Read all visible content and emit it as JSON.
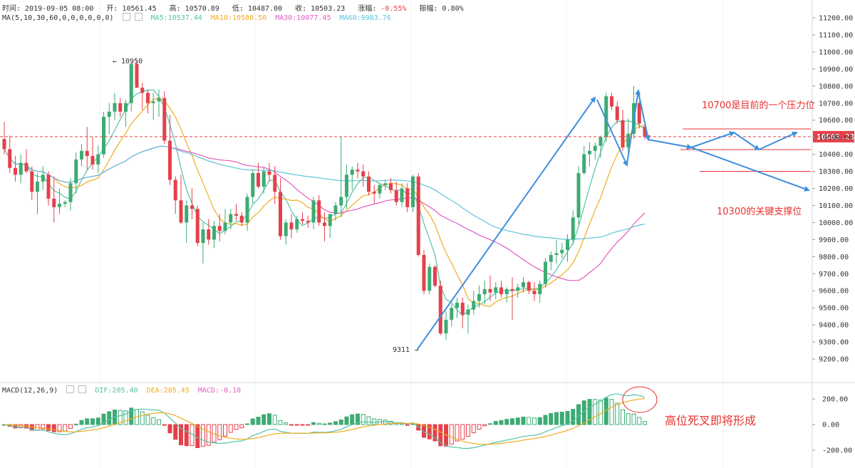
{
  "info_bar": {
    "time_label": "时间:",
    "time": "2019-09-05 08:00",
    "open_label": "开:",
    "open": "10561.45",
    "high_label": "高:",
    "high": "10570.89",
    "low_label": "低:",
    "low": "10487.00",
    "close_label": "收:",
    "close": "10503.23",
    "change_label": "涨幅:",
    "change": "-0.55%",
    "amplitude_label": "振幅:",
    "amplitude": "0.80%"
  },
  "ma_bar": {
    "label": "MA(5,10,30,60,0,0,0,0,0,0)",
    "ma5": "MA5:10537.44",
    "ma10": "MA10:10580.50",
    "ma30": "MA30:10077.45",
    "ma60": "MA60:9983.76"
  },
  "macd_bar": {
    "label": "MACD(12,26,9)",
    "dif": "DIF:205.40",
    "dea": "DEA:205.45",
    "macd": "MACD:-0.10"
  },
  "annotations": {
    "resistance": "10700是目前的一个压力位",
    "support": "10300的关键支撑位",
    "death_cross": "高位死叉即将形成",
    "high_mark": "10950",
    "low_mark": "9311"
  },
  "price_tag": "10503.23",
  "colors": {
    "up": "#3dab73",
    "down": "#e5404a",
    "ma5": "#53c2a8",
    "ma10": "#f2ac1f",
    "ma30": "#e25ac0",
    "ma60": "#5fc4d9",
    "arrow": "#3f8fdc",
    "annotation": "#e8312f",
    "price_line": "#e5404a",
    "change_neg": "#e5404a"
  },
  "chart_data": [
    {
      "type": "candlestick",
      "y_axis_ticks": [
        "11200.00",
        "11100.00",
        "11000.00",
        "10900.00",
        "10800.00",
        "10700.00",
        "10600.00",
        "10500.00",
        "10400.00",
        "10300.00",
        "10200.00",
        "10100.00",
        "10000.00",
        "9900.00",
        "9800.00",
        "9700.00",
        "9600.00",
        "9500.00",
        "9400.00",
        "9300.00",
        "9200.00"
      ],
      "ylim": [
        9150,
        11240
      ],
      "last_price": 10503.23,
      "levels": {
        "resistance": 10700,
        "support": 10300
      },
      "candles": [
        [
          10490,
          10590,
          10400,
          10430
        ],
        [
          10430,
          10510,
          10290,
          10320
        ],
        [
          10320,
          10390,
          10240,
          10280
        ],
        [
          10280,
          10400,
          10230,
          10350
        ],
        [
          10350,
          10430,
          10290,
          10300
        ],
        [
          10300,
          10330,
          10130,
          10180
        ],
        [
          10180,
          10290,
          10050,
          10240
        ],
        [
          10240,
          10330,
          10190,
          10280
        ],
        [
          10280,
          10300,
          10100,
          10140
        ],
        [
          10140,
          10270,
          10000,
          10090
        ],
        [
          10090,
          10200,
          10050,
          10110
        ],
        [
          10110,
          10130,
          10090,
          10120
        ],
        [
          10120,
          10260,
          10070,
          10230
        ],
        [
          10230,
          10410,
          10170,
          10370
        ],
        [
          10370,
          10460,
          10330,
          10420
        ],
        [
          10420,
          10560,
          10310,
          10390
        ],
        [
          10390,
          10500,
          10310,
          10340
        ],
        [
          10340,
          10450,
          10290,
          10400
        ],
        [
          10400,
          10650,
          10380,
          10620
        ],
        [
          10620,
          10700,
          10520,
          10650
        ],
        [
          10650,
          10760,
          10600,
          10700
        ],
        [
          10700,
          10730,
          10620,
          10650
        ],
        [
          10650,
          10720,
          10560,
          10700
        ],
        [
          10700,
          10940,
          10650,
          10930
        ],
        [
          10930,
          10950,
          10790,
          10790
        ],
        [
          10790,
          10820,
          10660,
          10760
        ],
        [
          10760,
          10780,
          10640,
          10700
        ],
        [
          10700,
          10760,
          10600,
          10710
        ],
        [
          10710,
          10780,
          10620,
          10730
        ],
        [
          10730,
          10770,
          10460,
          10480
        ],
        [
          10480,
          10630,
          10220,
          10250
        ],
        [
          10250,
          10270,
          10050,
          10130
        ],
        [
          10130,
          10280,
          9990,
          10000
        ],
        [
          10000,
          10130,
          9880,
          10100
        ],
        [
          10100,
          10200,
          10020,
          10080
        ],
        [
          10080,
          10100,
          9860,
          9880
        ],
        [
          9880,
          10000,
          9760,
          9960
        ],
        [
          9960,
          10020,
          9870,
          9900
        ],
        [
          9900,
          10010,
          9850,
          9980
        ],
        [
          9980,
          10050,
          9890,
          9950
        ],
        [
          9950,
          10080,
          9930,
          10000
        ],
        [
          10000,
          10080,
          9960,
          10050
        ],
        [
          10050,
          10110,
          10010,
          10040
        ],
        [
          10040,
          10060,
          9980,
          10000
        ],
        [
          10000,
          10170,
          9950,
          10150
        ],
        [
          10150,
          10310,
          10110,
          10290
        ],
        [
          10290,
          10350,
          10200,
          10210
        ],
        [
          10210,
          10320,
          10170,
          10300
        ],
        [
          10300,
          10350,
          10240,
          10280
        ],
        [
          10280,
          10330,
          10110,
          10180
        ],
        [
          10180,
          10260,
          9900,
          9920
        ],
        [
          9920,
          10020,
          9870,
          10000
        ],
        [
          10000,
          10050,
          9910,
          9960
        ],
        [
          9960,
          10040,
          9940,
          10020
        ],
        [
          10020,
          10060,
          9990,
          10010
        ],
        [
          10010,
          10040,
          9970,
          10000
        ],
        [
          10000,
          10150,
          9960,
          10130
        ],
        [
          10130,
          10160,
          9980,
          10000
        ],
        [
          10000,
          10060,
          9890,
          9980
        ],
        [
          9980,
          10040,
          9910,
          10050
        ],
        [
          10050,
          10120,
          10010,
          10100
        ],
        [
          10100,
          10500,
          10030,
          10150
        ],
        [
          10150,
          10340,
          10080,
          10280
        ],
        [
          10280,
          10330,
          10190,
          10310
        ],
        [
          10310,
          10350,
          10260,
          10300
        ],
        [
          10300,
          10340,
          10210,
          10270
        ],
        [
          10270,
          10300,
          10160,
          10180
        ],
        [
          10180,
          10220,
          10110,
          10170
        ],
        [
          10170,
          10230,
          10140,
          10220
        ],
        [
          10220,
          10250,
          10190,
          10230
        ],
        [
          10230,
          10260,
          10170,
          10190
        ],
        [
          10190,
          10240,
          10100,
          10120
        ],
        [
          10120,
          10230,
          10090,
          10200
        ],
        [
          10200,
          10230,
          10060,
          10090
        ],
        [
          10090,
          10280,
          10060,
          10270
        ],
        [
          10270,
          10290,
          9800,
          9810
        ],
        [
          9810,
          9840,
          9580,
          9600
        ],
        [
          9600,
          9760,
          9580,
          9740
        ],
        [
          9740,
          9750,
          9620,
          9630
        ],
        [
          9630,
          9660,
          9340,
          9350
        ],
        [
          9350,
          9480,
          9311,
          9430
        ],
        [
          9430,
          9520,
          9390,
          9500
        ],
        [
          9500,
          9560,
          9440,
          9530
        ],
        [
          9530,
          9560,
          9380,
          9460
        ],
        [
          9460,
          9520,
          9350,
          9490
        ],
        [
          9490,
          9600,
          9460,
          9540
        ],
        [
          9540,
          9630,
          9500,
          9580
        ],
        [
          9580,
          9660,
          9520,
          9610
        ],
        [
          9610,
          9690,
          9540,
          9590
        ],
        [
          9590,
          9650,
          9550,
          9620
        ],
        [
          9620,
          9660,
          9560,
          9580
        ],
        [
          9580,
          9620,
          9530,
          9610
        ],
        [
          9610,
          9680,
          9430,
          9600
        ],
        [
          9600,
          9640,
          9560,
          9620
        ],
        [
          9620,
          9680,
          9590,
          9650
        ],
        [
          9650,
          9660,
          9580,
          9600
        ],
        [
          9600,
          9650,
          9540,
          9580
        ],
        [
          9580,
          9660,
          9530,
          9640
        ],
        [
          9640,
          9790,
          9620,
          9770
        ],
        [
          9770,
          9830,
          9720,
          9810
        ],
        [
          9810,
          9900,
          9760,
          9820
        ],
        [
          9820,
          9880,
          9790,
          9840
        ],
        [
          9840,
          9930,
          9770,
          9900
        ],
        [
          9900,
          10070,
          9870,
          10030
        ],
        [
          10030,
          10330,
          9990,
          10290
        ],
        [
          10290,
          10450,
          10280,
          10400
        ],
        [
          10400,
          10470,
          10330,
          10420
        ],
        [
          10420,
          10470,
          10370,
          10450
        ],
        [
          10450,
          10510,
          10380,
          10500
        ],
        [
          10500,
          10760,
          10470,
          10740
        ],
        [
          10740,
          10760,
          10660,
          10680
        ],
        [
          10680,
          10710,
          10580,
          10600
        ],
        [
          10600,
          10660,
          10420,
          10440
        ],
        [
          10440,
          10610,
          10380,
          10520
        ],
        [
          10520,
          10800,
          10490,
          10700
        ],
        [
          10700,
          10710,
          10550,
          10580
        ],
        [
          10561.45,
          10570.89,
          10487.0,
          10503.23
        ]
      ],
      "high_mark": 10950,
      "low_mark": 9311
    },
    {
      "type": "macd",
      "parameters": [
        12,
        26,
        9
      ],
      "y_axis_ticks": [
        "200.00",
        "0.00",
        "-200.00"
      ],
      "ylim": [
        -250,
        300
      ],
      "dif": 205.4,
      "dea": 205.45,
      "macd": -0.1
    }
  ]
}
